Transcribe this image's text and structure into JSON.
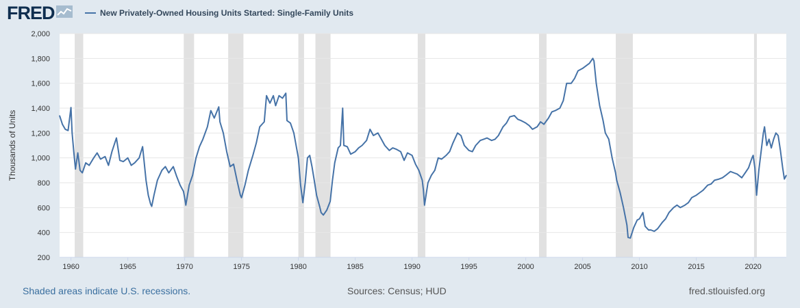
{
  "header": {
    "logo_text": "FRED",
    "logo_icon": "line-chart-icon",
    "legend_label": "New Privately-Owned Housing Units Started: Single-Family Units"
  },
  "footer": {
    "recessions_note": "Shaded areas indicate U.S. recessions.",
    "sources": "Sources: Census; HUD",
    "site": "fred.stlouisfed.org"
  },
  "colors": {
    "series": "#4572a7",
    "recession": "#e1e1e1",
    "plot_bg": "#ffffff",
    "page_bg": "#e1e9f0"
  },
  "chart_data": {
    "type": "line",
    "title": "New Privately-Owned Housing Units Started: Single-Family Units",
    "xlabel": "",
    "ylabel": "Thousands of Units",
    "xlim": [
      1959.0,
      2022.917
    ],
    "ylim": [
      200,
      2000
    ],
    "x_ticks": [
      1960,
      1965,
      1970,
      1975,
      1980,
      1985,
      1990,
      1995,
      2000,
      2005,
      2010,
      2015,
      2020
    ],
    "x_tick_labels": [
      "1960",
      "1965",
      "1970",
      "1975",
      "1980",
      "1985",
      "1990",
      "1995",
      "2000",
      "2005",
      "2010",
      "2015",
      "2020"
    ],
    "y_ticks": [
      200,
      400,
      600,
      800,
      1000,
      1200,
      1400,
      1600,
      1800,
      2000
    ],
    "y_tick_labels": [
      "200",
      "400",
      "600",
      "800",
      "1,000",
      "1,200",
      "1,400",
      "1,600",
      "1,800",
      "2,000"
    ],
    "grid": "horizontal",
    "recessions": [
      [
        1960.33,
        1961.08
      ],
      [
        1969.92,
        1970.83
      ],
      [
        1973.83,
        1975.17
      ],
      [
        1980.0,
        1980.5
      ],
      [
        1981.5,
        1982.83
      ],
      [
        1990.5,
        1991.17
      ],
      [
        2001.17,
        2001.83
      ],
      [
        2007.92,
        2009.42
      ],
      [
        2020.08,
        2020.33
      ]
    ],
    "series": [
      {
        "values": [
          [
            1959.0,
            1340
          ],
          [
            1959.25,
            1270
          ],
          [
            1959.5,
            1230
          ],
          [
            1959.75,
            1220
          ],
          [
            1960.0,
            1405
          ],
          [
            1960.1,
            1200
          ],
          [
            1960.25,
            1050
          ],
          [
            1960.4,
            910
          ],
          [
            1960.6,
            1040
          ],
          [
            1960.8,
            900
          ],
          [
            1961.0,
            880
          ],
          [
            1961.3,
            960
          ],
          [
            1961.6,
            940
          ],
          [
            1962.0,
            1000
          ],
          [
            1962.3,
            1040
          ],
          [
            1962.6,
            990
          ],
          [
            1963.0,
            1010
          ],
          [
            1963.3,
            940
          ],
          [
            1963.6,
            1050
          ],
          [
            1964.0,
            1160
          ],
          [
            1964.3,
            980
          ],
          [
            1964.6,
            970
          ],
          [
            1965.0,
            1000
          ],
          [
            1965.3,
            940
          ],
          [
            1965.6,
            960
          ],
          [
            1966.0,
            1000
          ],
          [
            1966.3,
            1090
          ],
          [
            1966.6,
            820
          ],
          [
            1966.8,
            700
          ],
          [
            1967.0,
            630
          ],
          [
            1967.1,
            610
          ],
          [
            1967.3,
            700
          ],
          [
            1967.6,
            820
          ],
          [
            1968.0,
            900
          ],
          [
            1968.3,
            930
          ],
          [
            1968.6,
            880
          ],
          [
            1969.0,
            930
          ],
          [
            1969.3,
            850
          ],
          [
            1969.6,
            780
          ],
          [
            1969.9,
            730
          ],
          [
            1970.0,
            680
          ],
          [
            1970.1,
            620
          ],
          [
            1970.4,
            780
          ],
          [
            1970.7,
            860
          ],
          [
            1971.0,
            1000
          ],
          [
            1971.3,
            1090
          ],
          [
            1971.6,
            1150
          ],
          [
            1972.0,
            1250
          ],
          [
            1972.3,
            1380
          ],
          [
            1972.6,
            1320
          ],
          [
            1973.0,
            1410
          ],
          [
            1973.1,
            1290
          ],
          [
            1973.4,
            1200
          ],
          [
            1973.7,
            1050
          ],
          [
            1974.0,
            930
          ],
          [
            1974.3,
            950
          ],
          [
            1974.6,
            820
          ],
          [
            1974.9,
            700
          ],
          [
            1975.0,
            680
          ],
          [
            1975.3,
            780
          ],
          [
            1975.6,
            900
          ],
          [
            1976.0,
            1020
          ],
          [
            1976.3,
            1120
          ],
          [
            1976.6,
            1250
          ],
          [
            1977.0,
            1290
          ],
          [
            1977.2,
            1500
          ],
          [
            1977.5,
            1440
          ],
          [
            1977.8,
            1500
          ],
          [
            1978.0,
            1420
          ],
          [
            1978.3,
            1500
          ],
          [
            1978.6,
            1480
          ],
          [
            1978.9,
            1520
          ],
          [
            1979.0,
            1300
          ],
          [
            1979.3,
            1280
          ],
          [
            1979.6,
            1200
          ],
          [
            1979.8,
            1100
          ],
          [
            1980.0,
            1000
          ],
          [
            1980.2,
            780
          ],
          [
            1980.4,
            640
          ],
          [
            1980.6,
            800
          ],
          [
            1980.8,
            1000
          ],
          [
            1981.0,
            1020
          ],
          [
            1981.2,
            930
          ],
          [
            1981.4,
            820
          ],
          [
            1981.6,
            700
          ],
          [
            1981.9,
            600
          ],
          [
            1982.0,
            560
          ],
          [
            1982.2,
            540
          ],
          [
            1982.5,
            580
          ],
          [
            1982.8,
            650
          ],
          [
            1983.0,
            820
          ],
          [
            1983.2,
            960
          ],
          [
            1983.5,
            1080
          ],
          [
            1983.7,
            1100
          ],
          [
            1983.9,
            1400
          ],
          [
            1984.0,
            1100
          ],
          [
            1984.3,
            1090
          ],
          [
            1984.6,
            1030
          ],
          [
            1985.0,
            1050
          ],
          [
            1985.3,
            1080
          ],
          [
            1985.6,
            1100
          ],
          [
            1986.0,
            1140
          ],
          [
            1986.3,
            1230
          ],
          [
            1986.6,
            1180
          ],
          [
            1987.0,
            1200
          ],
          [
            1987.3,
            1150
          ],
          [
            1987.6,
            1100
          ],
          [
            1988.0,
            1060
          ],
          [
            1988.3,
            1080
          ],
          [
            1988.6,
            1070
          ],
          [
            1989.0,
            1050
          ],
          [
            1989.3,
            980
          ],
          [
            1989.6,
            1040
          ],
          [
            1990.0,
            1020
          ],
          [
            1990.3,
            950
          ],
          [
            1990.6,
            900
          ],
          [
            1990.9,
            820
          ],
          [
            1991.0,
            740
          ],
          [
            1991.1,
            620
          ],
          [
            1991.4,
            800
          ],
          [
            1991.7,
            860
          ],
          [
            1992.0,
            900
          ],
          [
            1992.3,
            1000
          ],
          [
            1992.6,
            990
          ],
          [
            1993.0,
            1020
          ],
          [
            1993.3,
            1050
          ],
          [
            1993.6,
            1120
          ],
          [
            1994.0,
            1200
          ],
          [
            1994.3,
            1180
          ],
          [
            1994.6,
            1100
          ],
          [
            1995.0,
            1060
          ],
          [
            1995.3,
            1050
          ],
          [
            1995.6,
            1100
          ],
          [
            1996.0,
            1140
          ],
          [
            1996.3,
            1150
          ],
          [
            1996.6,
            1160
          ],
          [
            1997.0,
            1140
          ],
          [
            1997.3,
            1150
          ],
          [
            1997.6,
            1180
          ],
          [
            1998.0,
            1250
          ],
          [
            1998.3,
            1280
          ],
          [
            1998.6,
            1330
          ],
          [
            1999.0,
            1340
          ],
          [
            1999.3,
            1310
          ],
          [
            1999.6,
            1300
          ],
          [
            2000.0,
            1280
          ],
          [
            2000.3,
            1260
          ],
          [
            2000.6,
            1230
          ],
          [
            2001.0,
            1250
          ],
          [
            2001.3,
            1290
          ],
          [
            2001.6,
            1270
          ],
          [
            2002.0,
            1320
          ],
          [
            2002.3,
            1370
          ],
          [
            2002.6,
            1380
          ],
          [
            2003.0,
            1400
          ],
          [
            2003.3,
            1460
          ],
          [
            2003.6,
            1600
          ],
          [
            2004.0,
            1600
          ],
          [
            2004.3,
            1640
          ],
          [
            2004.6,
            1700
          ],
          [
            2005.0,
            1720
          ],
          [
            2005.3,
            1740
          ],
          [
            2005.6,
            1760
          ],
          [
            2005.9,
            1800
          ],
          [
            2006.0,
            1780
          ],
          [
            2006.2,
            1600
          ],
          [
            2006.5,
            1420
          ],
          [
            2006.8,
            1300
          ],
          [
            2007.0,
            1200
          ],
          [
            2007.3,
            1150
          ],
          [
            2007.6,
            1000
          ],
          [
            2007.9,
            880
          ],
          [
            2008.0,
            820
          ],
          [
            2008.3,
            720
          ],
          [
            2008.6,
            600
          ],
          [
            2008.9,
            460
          ],
          [
            2009.0,
            360
          ],
          [
            2009.2,
            355
          ],
          [
            2009.5,
            440
          ],
          [
            2009.8,
            500
          ],
          [
            2010.0,
            510
          ],
          [
            2010.3,
            560
          ],
          [
            2010.5,
            450
          ],
          [
            2010.8,
            420
          ],
          [
            2011.0,
            420
          ],
          [
            2011.3,
            410
          ],
          [
            2011.6,
            430
          ],
          [
            2012.0,
            480
          ],
          [
            2012.3,
            510
          ],
          [
            2012.6,
            560
          ],
          [
            2013.0,
            600
          ],
          [
            2013.3,
            620
          ],
          [
            2013.6,
            600
          ],
          [
            2014.0,
            620
          ],
          [
            2014.3,
            640
          ],
          [
            2014.6,
            680
          ],
          [
            2015.0,
            700
          ],
          [
            2015.3,
            720
          ],
          [
            2015.6,
            740
          ],
          [
            2016.0,
            780
          ],
          [
            2016.3,
            790
          ],
          [
            2016.6,
            820
          ],
          [
            2017.0,
            830
          ],
          [
            2017.3,
            840
          ],
          [
            2017.6,
            860
          ],
          [
            2018.0,
            890
          ],
          [
            2018.3,
            880
          ],
          [
            2018.6,
            870
          ],
          [
            2019.0,
            840
          ],
          [
            2019.3,
            880
          ],
          [
            2019.6,
            920
          ],
          [
            2019.9,
            1000
          ],
          [
            2020.0,
            1020
          ],
          [
            2020.15,
            920
          ],
          [
            2020.3,
            700
          ],
          [
            2020.5,
            900
          ],
          [
            2020.7,
            1050
          ],
          [
            2020.9,
            1200
          ],
          [
            2021.0,
            1250
          ],
          [
            2021.2,
            1100
          ],
          [
            2021.4,
            1150
          ],
          [
            2021.6,
            1080
          ],
          [
            2021.8,
            1150
          ],
          [
            2022.0,
            1200
          ],
          [
            2022.2,
            1180
          ],
          [
            2022.4,
            1060
          ],
          [
            2022.6,
            920
          ],
          [
            2022.75,
            830
          ],
          [
            2022.917,
            860
          ]
        ]
      }
    ]
  }
}
